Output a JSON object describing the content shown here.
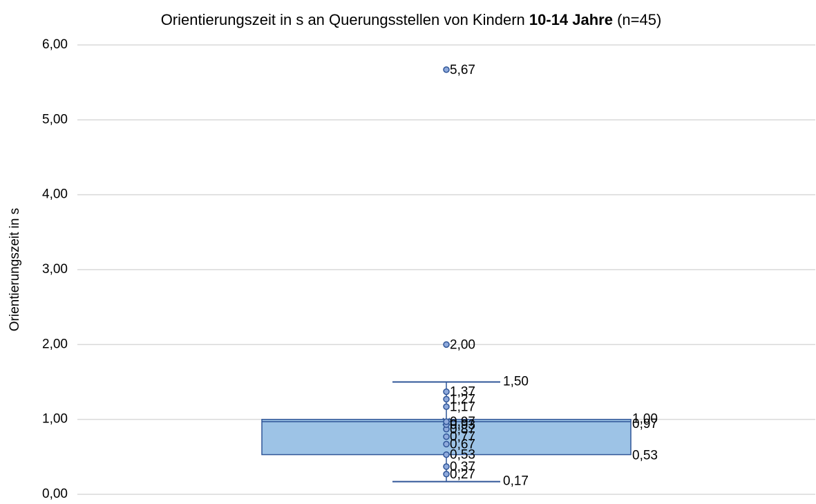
{
  "chart_data": {
    "type": "box",
    "title": [
      "Orientierungszeit in s an Querungsstellen von Kindern ",
      "10-14 Jahre",
      " (n=45)"
    ],
    "y_label": "Orientierungszeit in s",
    "ylim": [
      0,
      6
    ],
    "yticks": [
      {
        "value": 0,
        "label": "0,00"
      },
      {
        "value": 1,
        "label": "1,00"
      },
      {
        "value": 2,
        "label": "2,00"
      },
      {
        "value": 3,
        "label": "3,00"
      },
      {
        "value": 4,
        "label": "4,00"
      },
      {
        "value": 5,
        "label": "5,00"
      },
      {
        "value": 6,
        "label": "6,00"
      }
    ],
    "grid": true,
    "color": "#9dc3e6",
    "box": {
      "min": 0.17,
      "q1": 0.53,
      "median": 0.97,
      "q3": 1.0,
      "max": 1.5,
      "mean": 0.97,
      "value_labels": {
        "min": "0,17",
        "q1": "0,53",
        "median": "0,97",
        "q3": "1,00",
        "max": "1,50"
      }
    },
    "points": {
      "values": [
        0.27,
        0.37,
        0.53,
        0.67,
        0.77,
        0.87,
        0.93,
        0.97,
        1.17,
        1.27,
        1.37,
        2.0,
        5.67
      ],
      "value_labels": [
        "0,27",
        "0,37",
        "0,53",
        "0,67",
        "0,77",
        "0,87",
        "0,93",
        "0,97",
        "1,17",
        "1,27",
        "1,37",
        "2,00",
        "5,67"
      ]
    }
  }
}
